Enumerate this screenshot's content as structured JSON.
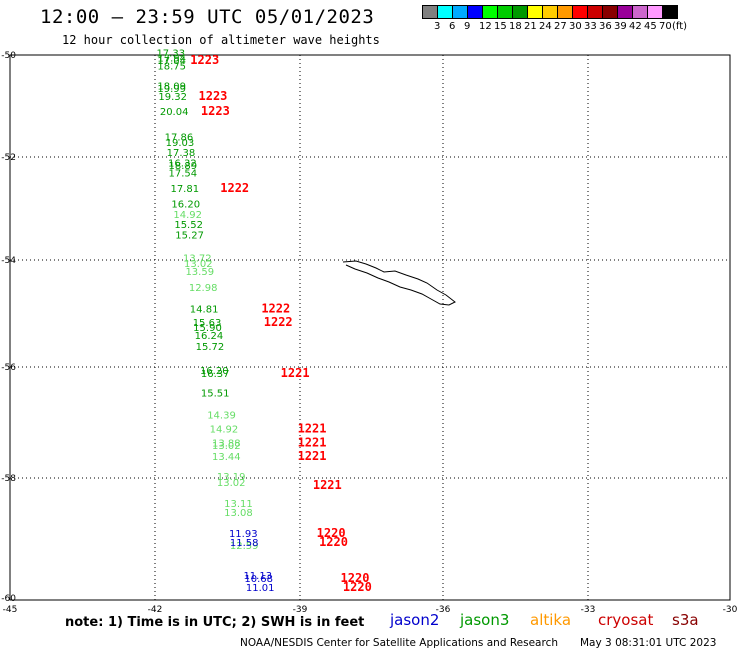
{
  "header": {
    "title": "12:00 — 23:59 UTC 05/01/2023",
    "subtitle": "12 hour collection of altimeter wave heights"
  },
  "legend": {
    "colors": [
      "#808080",
      "#00ffff",
      "#00aaff",
      "#0000ff",
      "#00ff00",
      "#00cc00",
      "#009900",
      "#ffff00",
      "#ffcc00",
      "#ff9900",
      "#ff0000",
      "#cc0000",
      "#880000",
      "#990099",
      "#cc66cc",
      "#ff99ff",
      "#000000"
    ],
    "ticks": [
      "3",
      "6",
      "9",
      "12",
      "15",
      "18",
      "21",
      "24",
      "27",
      "30",
      "33",
      "36",
      "39",
      "42",
      "45",
      "70"
    ],
    "unit": "(ft)"
  },
  "map": {
    "lon_ticks": [
      "-45",
      "-42",
      "-39",
      "-36",
      "-33",
      "-30"
    ],
    "lat_ticks": [
      "-50",
      "-52",
      "-54",
      "-56",
      "-58",
      "-60"
    ],
    "island_outline": [
      [
        343,
        262
      ],
      [
        356,
        261
      ],
      [
        366,
        264
      ],
      [
        376,
        268
      ],
      [
        384,
        272
      ],
      [
        395,
        271
      ],
      [
        406,
        275
      ],
      [
        418,
        279
      ],
      [
        427,
        283
      ],
      [
        437,
        290
      ],
      [
        446,
        295
      ],
      [
        455,
        302
      ],
      [
        449,
        305
      ],
      [
        440,
        304
      ],
      [
        431,
        299
      ],
      [
        422,
        294
      ],
      [
        411,
        290
      ],
      [
        400,
        287
      ],
      [
        389,
        282
      ],
      [
        378,
        278
      ],
      [
        367,
        273
      ],
      [
        355,
        269
      ],
      [
        346,
        265
      ]
    ],
    "observations": [
      {
        "text": "17.33",
        "lon": -41.97,
        "lat": -50.03,
        "color": "#009900"
      },
      {
        "text": "17.94",
        "lon": -41.95,
        "lat": -50.13,
        "color": "#009900"
      },
      {
        "text": "17.04",
        "lon": -41.95,
        "lat": -50.18,
        "color": "#009900"
      },
      {
        "text": "18.75",
        "lon": -41.95,
        "lat": -50.28,
        "color": "#009900"
      },
      {
        "text": "18.09",
        "lon": -41.95,
        "lat": -50.68,
        "color": "#009900"
      },
      {
        "text": "19.99",
        "lon": -41.95,
        "lat": -50.73,
        "color": "#009900"
      },
      {
        "text": "19.32",
        "lon": -41.93,
        "lat": -50.88,
        "color": "#009900"
      },
      {
        "text": "20.04",
        "lon": -41.9,
        "lat": -51.18,
        "color": "#009900"
      },
      {
        "text": "17.86",
        "lon": -41.8,
        "lat": -51.68,
        "color": "#009900"
      },
      {
        "text": "19.03",
        "lon": -41.78,
        "lat": -51.78,
        "color": "#009900"
      },
      {
        "text": "17.38",
        "lon": -41.76,
        "lat": -51.98,
        "color": "#009900"
      },
      {
        "text": "16.32",
        "lon": -41.73,
        "lat": -52.18,
        "color": "#009900"
      },
      {
        "text": "18.89",
        "lon": -41.72,
        "lat": -52.23,
        "color": "#009900"
      },
      {
        "text": "17.54",
        "lon": -41.72,
        "lat": -52.38,
        "color": "#009900"
      },
      {
        "text": "17.81",
        "lon": -41.68,
        "lat": -52.68,
        "color": "#009900"
      },
      {
        "text": "16.20",
        "lon": -41.66,
        "lat": -52.98,
        "color": "#009900"
      },
      {
        "text": "14.92",
        "lon": -41.62,
        "lat": -53.18,
        "color": "#66dd66"
      },
      {
        "text": "15.52",
        "lon": -41.6,
        "lat": -53.38,
        "color": "#009900"
      },
      {
        "text": "15.27",
        "lon": -41.58,
        "lat": -53.58,
        "color": "#009900"
      },
      {
        "text": "13.72",
        "lon": -41.42,
        "lat": -54.03,
        "color": "#66dd66"
      },
      {
        "text": "13.02",
        "lon": -41.4,
        "lat": -54.13,
        "color": "#66dd66"
      },
      {
        "text": "13.59",
        "lon": -41.37,
        "lat": -54.28,
        "color": "#66dd66"
      },
      {
        "text": "12.98",
        "lon": -41.3,
        "lat": -54.58,
        "color": "#66dd66"
      },
      {
        "text": "14.81",
        "lon": -41.28,
        "lat": -54.98,
        "color": "#009900"
      },
      {
        "text": "15.63",
        "lon": -41.22,
        "lat": -55.23,
        "color": "#009900"
      },
      {
        "text": "15.90",
        "lon": -41.21,
        "lat": -55.33,
        "color": "#009900"
      },
      {
        "text": "16.24",
        "lon": -41.18,
        "lat": -55.48,
        "color": "#009900"
      },
      {
        "text": "15.72",
        "lon": -41.16,
        "lat": -55.68,
        "color": "#009900"
      },
      {
        "text": "16.20",
        "lon": -41.07,
        "lat": -56.13,
        "color": "#009900"
      },
      {
        "text": "16.37",
        "lon": -41.05,
        "lat": -56.18,
        "color": "#009900"
      },
      {
        "text": "15.51",
        "lon": -41.05,
        "lat": -56.53,
        "color": "#009900"
      },
      {
        "text": "14.39",
        "lon": -40.92,
        "lat": -56.93,
        "color": "#66dd66"
      },
      {
        "text": "14.92",
        "lon": -40.87,
        "lat": -57.18,
        "color": "#66dd66"
      },
      {
        "text": "13.88",
        "lon": -40.82,
        "lat": -57.43,
        "color": "#66dd66"
      },
      {
        "text": "13.02",
        "lon": -40.82,
        "lat": -57.48,
        "color": "#66dd66"
      },
      {
        "text": "13.44",
        "lon": -40.82,
        "lat": -57.68,
        "color": "#66dd66"
      },
      {
        "text": "13.19",
        "lon": -40.72,
        "lat": -58.03,
        "color": "#66dd66"
      },
      {
        "text": "13.02",
        "lon": -40.72,
        "lat": -58.13,
        "color": "#66dd66"
      },
      {
        "text": "13.11",
        "lon": -40.57,
        "lat": -58.48,
        "color": "#66dd66"
      },
      {
        "text": "13.08",
        "lon": -40.57,
        "lat": -58.63,
        "color": "#66dd66"
      },
      {
        "text": "11.93",
        "lon": -40.47,
        "lat": -58.98,
        "color": "#0000cc"
      },
      {
        "text": "12.59",
        "lon": -40.45,
        "lat": -59.18,
        "color": "#66dd66"
      },
      {
        "text": "11.58",
        "lon": -40.45,
        "lat": -59.13,
        "color": "#0000cc"
      },
      {
        "text": "11.13",
        "lon": -40.17,
        "lat": -59.68,
        "color": "#0000cc"
      },
      {
        "text": "10.68",
        "lon": -40.15,
        "lat": -59.73,
        "color": "#0000cc"
      },
      {
        "text": "11.01",
        "lon": -40.12,
        "lat": -59.88,
        "color": "#0000cc"
      }
    ],
    "time_labels": [
      {
        "text": "1223",
        "lon": -41.27,
        "lat": -50.18
      },
      {
        "text": "1223",
        "lon": -41.1,
        "lat": -50.88
      },
      {
        "text": "1223",
        "lon": -41.05,
        "lat": -51.18
      },
      {
        "text": "1222",
        "lon": -40.65,
        "lat": -52.68
      },
      {
        "text": "1222",
        "lon": -39.8,
        "lat": -54.98
      },
      {
        "text": "1222",
        "lon": -39.75,
        "lat": -55.23
      },
      {
        "text": "1221",
        "lon": -39.4,
        "lat": -56.18
      },
      {
        "text": "1221",
        "lon": -39.05,
        "lat": -57.18
      },
      {
        "text": "1221",
        "lon": -39.05,
        "lat": -57.43
      },
      {
        "text": "1221",
        "lon": -39.05,
        "lat": -57.68
      },
      {
        "text": "1221",
        "lon": -38.73,
        "lat": -58.18
      },
      {
        "text": "1220",
        "lon": -38.65,
        "lat": -58.98
      },
      {
        "text": "1220",
        "lon": -38.6,
        "lat": -59.13
      },
      {
        "text": "1220",
        "lon": -38.15,
        "lat": -59.73
      },
      {
        "text": "1220",
        "lon": -38.1,
        "lat": -59.88
      }
    ]
  },
  "footer": {
    "note": "note: 1) Time is in UTC; 2) SWH is in feet",
    "satellites": [
      {
        "name": "jason2",
        "color": "#0000cc"
      },
      {
        "name": "jason3",
        "color": "#009900"
      },
      {
        "name": "altika",
        "color": "#ff9900"
      },
      {
        "name": "cryosat",
        "color": "#cc0000"
      },
      {
        "name": "s3a",
        "color": "#880000"
      }
    ],
    "credit": "NOAA/NESDIS Center for Satellite Applications and Research",
    "timestamp": "May  3 08:31:01 UTC 2023"
  }
}
